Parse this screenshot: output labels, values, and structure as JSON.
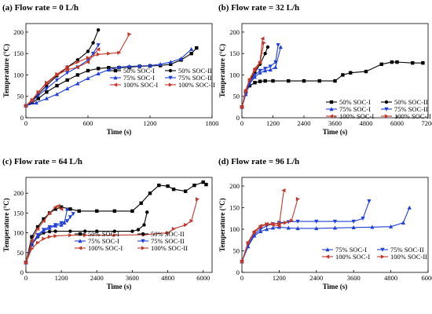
{
  "chart_data": [
    {
      "type": "line",
      "title": "(a) Flow rate = 0 L/h",
      "xlabel": "Time (s)",
      "ylabel": "Temperature (°C)",
      "xlim": [
        0,
        1800
      ],
      "ylim": [
        0,
        220
      ],
      "xticks": [
        0,
        600,
        1200,
        1800
      ],
      "yticks": [
        0,
        50,
        100,
        150,
        200
      ],
      "grid": false,
      "legend": "lower-right",
      "series": [
        {
          "name": "50% SOC-I",
          "color": "#000000",
          "marker": "square",
          "x": [
            0,
            60,
            120,
            200,
            300,
            400,
            500,
            600,
            700,
            800,
            900,
            1000,
            1100,
            1200,
            1300,
            1400,
            1500,
            1600,
            1650
          ],
          "y": [
            28,
            35,
            45,
            60,
            75,
            88,
            100,
            110,
            115,
            117,
            117,
            118,
            120,
            121,
            122,
            125,
            135,
            150,
            163
          ]
        },
        {
          "name": "50% SOC-II",
          "color": "#000000",
          "marker": "circle",
          "x": [
            0,
            60,
            120,
            200,
            300,
            400,
            500,
            600,
            650,
            700
          ],
          "y": [
            28,
            40,
            55,
            75,
            98,
            118,
            135,
            155,
            175,
            205
          ]
        },
        {
          "name": "75% SOC-I",
          "color": "#1f3fd6",
          "marker": "triangle-up",
          "x": [
            0,
            100,
            200,
            300,
            400,
            500,
            600,
            700,
            800,
            900,
            1000,
            1100,
            1200,
            1300,
            1400,
            1500,
            1600
          ],
          "y": [
            28,
            35,
            45,
            55,
            68,
            80,
            92,
            103,
            112,
            118,
            120,
            121,
            122,
            125,
            130,
            138,
            160
          ]
        },
        {
          "name": "75% SOC-II",
          "color": "#1f3fd6",
          "marker": "triangle-down",
          "x": [
            0,
            60,
            120,
            200,
            300,
            400,
            500,
            600,
            650,
            700
          ],
          "y": [
            28,
            38,
            52,
            68,
            88,
            105,
            118,
            135,
            150,
            170
          ]
        },
        {
          "name": "100% SOC-I",
          "color": "#c0392b",
          "marker": "triangle-left",
          "x": [
            0,
            60,
            120,
            200,
            300,
            400,
            500,
            600,
            700
          ],
          "y": [
            28,
            40,
            60,
            80,
            100,
            112,
            118,
            130,
            160
          ]
        },
        {
          "name": "100% SOC-II",
          "color": "#c0392b",
          "marker": "triangle-right",
          "x": [
            0,
            60,
            120,
            200,
            300,
            400,
            500,
            600,
            700,
            800,
            900,
            1000
          ],
          "y": [
            28,
            42,
            60,
            82,
            102,
            118,
            130,
            140,
            148,
            150,
            152,
            195
          ]
        }
      ]
    },
    {
      "type": "line",
      "title": "(b) Flow rate = 32 L/h",
      "xlabel": "Time (s)",
      "ylabel": "Temperature (°C)",
      "xlim": [
        0,
        7200
      ],
      "ylim": [
        0,
        220
      ],
      "xticks": [
        0,
        1200,
        2400,
        3600,
        4800,
        6000,
        7200
      ],
      "yticks": [
        0,
        50,
        100,
        150,
        200
      ],
      "grid": false,
      "legend": "lower-right",
      "series": [
        {
          "name": "50% SOC-I",
          "color": "#000000",
          "marker": "square",
          "x": [
            0,
            150,
            300,
            500,
            700,
            900,
            1200,
            1800,
            2400,
            3000,
            3600,
            3900,
            4200,
            4800,
            5400,
            5800,
            6000,
            6600,
            7000
          ],
          "y": [
            25,
            60,
            75,
            82,
            85,
            86,
            86,
            86,
            86,
            86,
            86,
            100,
            105,
            108,
            125,
            130,
            130,
            128,
            128
          ]
        },
        {
          "name": "50% SOC-II",
          "color": "#000000",
          "marker": "circle",
          "x": [
            0,
            150,
            300,
            500,
            700,
            900,
            1000
          ],
          "y": [
            25,
            60,
            85,
            105,
            125,
            150,
            165
          ]
        },
        {
          "name": "75% SOC-I",
          "color": "#1f3fd6",
          "marker": "triangle-up",
          "x": [
            0,
            150,
            300,
            500,
            700,
            900,
            1100,
            1300,
            1500
          ],
          "y": [
            25,
            55,
            80,
            95,
            105,
            110,
            112,
            118,
            165
          ]
        },
        {
          "name": "75% SOC-II",
          "color": "#1f3fd6",
          "marker": "triangle-down",
          "x": [
            0,
            150,
            300,
            500,
            700,
            900,
            1100,
            1300,
            1400
          ],
          "y": [
            25,
            55,
            82,
            100,
            110,
            115,
            120,
            130,
            170
          ]
        },
        {
          "name": "100% SOC-I",
          "color": "#c0392b",
          "marker": "triangle-left",
          "x": [
            0,
            150,
            300,
            500,
            700,
            800
          ],
          "y": [
            25,
            65,
            90,
            115,
            130,
            185
          ]
        },
        {
          "name": "100% SOC-II",
          "color": "#c0392b",
          "marker": "triangle-right",
          "x": [
            0,
            150,
            300,
            500,
            700,
            850
          ],
          "y": [
            25,
            62,
            88,
            110,
            128,
            175
          ]
        }
      ]
    },
    {
      "type": "line",
      "title": "(c) Flow rate = 64 L/h",
      "xlabel": "Time (s)",
      "ylabel": "Temperature (°C)",
      "xlim": [
        0,
        6300
      ],
      "ylim": [
        0,
        240
      ],
      "xticks": [
        0,
        1200,
        2400,
        3600,
        4800,
        6000
      ],
      "yticks": [
        0,
        50,
        100,
        150,
        200
      ],
      "grid": false,
      "legend": "lower-center",
      "series": [
        {
          "name": "50% SOC-I",
          "color": "#000000",
          "marker": "square",
          "x": [
            0,
            200,
            400,
            600,
            800,
            1000,
            1200,
            1500,
            1800,
            2400,
            3000,
            3600,
            3900,
            4200,
            4500,
            4800,
            5000,
            5400,
            5700,
            6000,
            6100
          ],
          "y": [
            25,
            90,
            115,
            135,
            150,
            160,
            165,
            160,
            155,
            155,
            155,
            155,
            175,
            200,
            220,
            218,
            210,
            205,
            220,
            228,
            222
          ]
        },
        {
          "name": "50% SOC-II",
          "color": "#000000",
          "marker": "circle",
          "x": [
            0,
            200,
            400,
            600,
            800,
            1000,
            1500,
            2000,
            2400,
            3000,
            3600,
            3800,
            4000,
            4100
          ],
          "y": [
            25,
            70,
            90,
            100,
            103,
            104,
            104,
            104,
            104,
            104,
            104,
            108,
            120,
            152
          ]
        },
        {
          "name": "75% SOC-I",
          "color": "#1f3fd6",
          "marker": "triangle-up",
          "x": [
            0,
            200,
            400,
            600,
            800,
            1000,
            1200,
            1300,
            1400
          ],
          "y": [
            25,
            70,
            92,
            105,
            112,
            118,
            120,
            125,
            160
          ]
        },
        {
          "name": "75% SOC-II",
          "color": "#1f3fd6",
          "marker": "triangle-down",
          "x": [
            0,
            200,
            400,
            600,
            800,
            1000,
            1200,
            1400,
            1500,
            1600
          ],
          "y": [
            25,
            72,
            95,
            108,
            115,
            120,
            125,
            130,
            140,
            148
          ]
        },
        {
          "name": "100% SOC-I",
          "color": "#c0392b",
          "marker": "triangle-left",
          "x": [
            0,
            200,
            400,
            600,
            800,
            1000,
            1100,
            1200
          ],
          "y": [
            25,
            80,
            110,
            130,
            150,
            165,
            168,
            160
          ]
        },
        {
          "name": "100% SOC-II",
          "color": "#c0392b",
          "marker": "triangle-right",
          "x": [
            0,
            200,
            400,
            600,
            800,
            1000,
            1500,
            2000,
            3000,
            4000,
            4800,
            5000,
            5400,
            5600,
            5800
          ],
          "y": [
            25,
            60,
            75,
            85,
            90,
            92,
            94,
            94,
            94,
            95,
            100,
            110,
            120,
            130,
            185
          ]
        }
      ]
    },
    {
      "type": "line",
      "title": "(d) Flow rate = 96 L/h",
      "xlabel": "Time (s)",
      "ylabel": "Temperature (°C)",
      "xlim": [
        0,
        6000
      ],
      "ylim": [
        0,
        220
      ],
      "xticks": [
        0,
        1200,
        2400,
        3600,
        4800,
        6000
      ],
      "yticks": [
        0,
        50,
        100,
        150,
        200
      ],
      "grid": false,
      "legend": "lower-right",
      "series": [
        {
          "name": "75% SOC-I",
          "color": "#1f3fd6",
          "marker": "triangle-up",
          "x": [
            0,
            200,
            400,
            600,
            800,
            1000,
            1200,
            1500,
            1800,
            2400,
            3000,
            3600,
            4200,
            4800,
            5200,
            5400
          ],
          "y": [
            25,
            60,
            85,
            95,
            100,
            103,
            105,
            103,
            102,
            102,
            103,
            104,
            105,
            106,
            115,
            150
          ]
        },
        {
          "name": "75% SOC-II",
          "color": "#1f3fd6",
          "marker": "triangle-down",
          "x": [
            0,
            200,
            400,
            600,
            800,
            1000,
            1200,
            1500,
            1800,
            2400,
            3000,
            3600,
            3900,
            4100
          ],
          "y": [
            25,
            65,
            88,
            100,
            108,
            112,
            115,
            117,
            118,
            118,
            118,
            118,
            125,
            165
          ]
        },
        {
          "name": "100% SOC-I",
          "color": "#c0392b",
          "marker": "triangle-left",
          "x": [
            0,
            200,
            400,
            600,
            800,
            1000,
            1200,
            1350
          ],
          "y": [
            25,
            70,
            95,
            108,
            112,
            110,
            108,
            190
          ]
        },
        {
          "name": "100% SOC-II",
          "color": "#c0392b",
          "marker": "triangle-right",
          "x": [
            0,
            200,
            400,
            600,
            800,
            1000,
            1200,
            1400,
            1600,
            1800
          ],
          "y": [
            25,
            68,
            92,
            105,
            112,
            113,
            113,
            115,
            120,
            170
          ]
        }
      ]
    }
  ]
}
